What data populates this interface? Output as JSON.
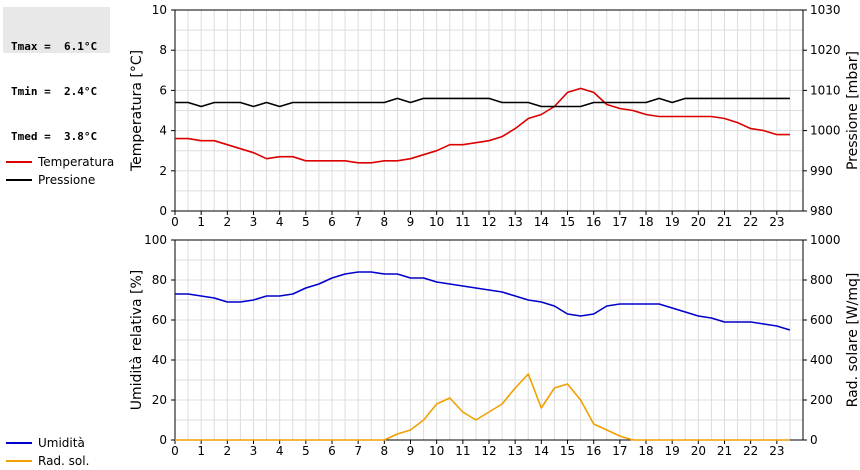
{
  "stats": {
    "tmax": "Tmax =  6.1°C",
    "tmin": "Tmin =  2.4°C",
    "tmed": "Tmed =  3.8°C"
  },
  "chart_data": [
    {
      "type": "line",
      "x_range": [
        0,
        24
      ],
      "x_ticks": [
        0,
        1,
        2,
        3,
        4,
        5,
        6,
        7,
        8,
        9,
        10,
        11,
        12,
        13,
        14,
        15,
        16,
        17,
        18,
        19,
        20,
        21,
        22,
        23
      ],
      "ylabel": "Temperatura [°C]",
      "y2label": "Pressione [mbar]",
      "ylim": [
        0,
        10
      ],
      "y_ticks": [
        0,
        2,
        4,
        6,
        8,
        10
      ],
      "y2lim": [
        980,
        1030
      ],
      "y2_ticks": [
        980,
        990,
        1000,
        1010,
        1020,
        1030
      ],
      "grid": true,
      "legend_placement": "left",
      "series": [
        {
          "name": "Temperatura",
          "axis": "left",
          "color": "#dd0000",
          "x": [
            0,
            0.5,
            1,
            1.5,
            2,
            2.5,
            3,
            3.5,
            4,
            4.5,
            5,
            5.5,
            6,
            6.5,
            7,
            7.5,
            8,
            8.5,
            9,
            9.5,
            10,
            10.5,
            11,
            11.5,
            12,
            12.5,
            13,
            13.5,
            14,
            14.5,
            15,
            15.5,
            16,
            16.5,
            17,
            17.5,
            18,
            18.5,
            19,
            19.5,
            20,
            20.5,
            21,
            21.5,
            22,
            22.5,
            23,
            23.5
          ],
          "values": [
            3.6,
            3.6,
            3.5,
            3.5,
            3.3,
            3.1,
            2.9,
            2.6,
            2.7,
            2.7,
            2.5,
            2.5,
            2.5,
            2.5,
            2.4,
            2.4,
            2.5,
            2.5,
            2.6,
            2.8,
            3.0,
            3.3,
            3.3,
            3.4,
            3.5,
            3.7,
            4.1,
            4.6,
            4.8,
            5.2,
            5.9,
            6.1,
            5.9,
            5.3,
            5.1,
            5.0,
            4.8,
            4.7,
            4.7,
            4.7,
            4.7,
            4.7,
            4.6,
            4.4,
            4.1,
            4.0,
            3.8,
            3.8
          ]
        },
        {
          "name": "Pressione",
          "axis": "right",
          "color": "#000000",
          "x": [
            0,
            0.5,
            1,
            1.5,
            2,
            2.5,
            3,
            3.5,
            4,
            4.5,
            5,
            5.5,
            6,
            6.5,
            7,
            7.5,
            8,
            8.5,
            9,
            9.5,
            10,
            10.5,
            11,
            11.5,
            12,
            12.5,
            13,
            13.5,
            14,
            14.5,
            15,
            15.5,
            16,
            16.5,
            17,
            17.5,
            18,
            18.5,
            19,
            19.5,
            20,
            20.5,
            21,
            21.5,
            22,
            22.5,
            23,
            23.5
          ],
          "values": [
            1007,
            1007,
            1006,
            1007,
            1007,
            1007,
            1006,
            1007,
            1006,
            1007,
            1007,
            1007,
            1007,
            1007,
            1007,
            1007,
            1007,
            1008,
            1007,
            1008,
            1008,
            1008,
            1008,
            1008,
            1008,
            1007,
            1007,
            1007,
            1006,
            1006,
            1006,
            1006,
            1007,
            1007,
            1007,
            1007,
            1007,
            1008,
            1007,
            1008,
            1008,
            1008,
            1008,
            1008,
            1008,
            1008,
            1008,
            1008
          ]
        }
      ]
    },
    {
      "type": "line",
      "x_range": [
        0,
        24
      ],
      "x_ticks": [
        0,
        1,
        2,
        3,
        4,
        5,
        6,
        7,
        8,
        9,
        10,
        11,
        12,
        13,
        14,
        15,
        16,
        17,
        18,
        19,
        20,
        21,
        22,
        23
      ],
      "ylabel": "Umidità relativa [%]",
      "y2label": "Rad. solare [W/mq]",
      "ylim": [
        0,
        100
      ],
      "y_ticks": [
        0,
        20,
        40,
        60,
        80,
        100
      ],
      "y2lim": [
        0,
        1000
      ],
      "y2_ticks": [
        0,
        200,
        400,
        600,
        800,
        1000
      ],
      "grid": true,
      "legend_placement": "left",
      "series": [
        {
          "name": "Umidità",
          "axis": "left",
          "color": "#0000cc",
          "x": [
            0,
            0.5,
            1,
            1.5,
            2,
            2.5,
            3,
            3.5,
            4,
            4.5,
            5,
            5.5,
            6,
            6.5,
            7,
            7.5,
            8,
            8.5,
            9,
            9.5,
            10,
            10.5,
            11,
            11.5,
            12,
            12.5,
            13,
            13.5,
            14,
            14.5,
            15,
            15.5,
            16,
            16.5,
            17,
            17.5,
            18,
            18.5,
            19,
            19.5,
            20,
            20.5,
            21,
            21.5,
            22,
            22.5,
            23,
            23.5
          ],
          "values": [
            73,
            73,
            72,
            71,
            69,
            69,
            70,
            72,
            72,
            73,
            76,
            78,
            81,
            83,
            84,
            84,
            83,
            83,
            81,
            81,
            79,
            78,
            77,
            76,
            75,
            74,
            72,
            70,
            69,
            67,
            63,
            62,
            63,
            67,
            68,
            68,
            68,
            68,
            66,
            64,
            62,
            61,
            59,
            59,
            59,
            58,
            57,
            55
          ]
        },
        {
          "name": "Rad. sol.",
          "axis": "right",
          "color": "#f0a000",
          "x": [
            0,
            0.5,
            1,
            1.5,
            2,
            2.5,
            3,
            3.5,
            4,
            4.5,
            5,
            5.5,
            6,
            6.5,
            7,
            7.5,
            8,
            8.5,
            9,
            9.5,
            10,
            10.5,
            11,
            11.5,
            12,
            12.5,
            13,
            13.5,
            14,
            14.5,
            15,
            15.5,
            16,
            16.5,
            17,
            17.5,
            18,
            18.5,
            19,
            19.5,
            20,
            20.5,
            21,
            21.5,
            22,
            22.5,
            23,
            23.5
          ],
          "values": [
            0,
            0,
            0,
            0,
            0,
            0,
            0,
            0,
            0,
            0,
            0,
            0,
            0,
            0,
            0,
            0,
            0,
            30,
            50,
            100,
            180,
            210,
            140,
            100,
            140,
            180,
            260,
            330,
            160,
            260,
            280,
            200,
            80,
            50,
            20,
            0,
            0,
            0,
            0,
            0,
            0,
            0,
            0,
            0,
            0,
            0,
            0,
            0
          ]
        }
      ]
    }
  ]
}
